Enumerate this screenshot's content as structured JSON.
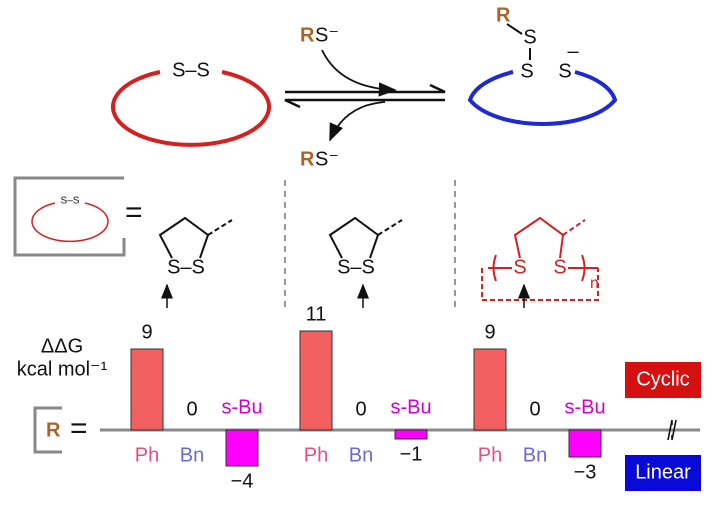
{
  "diagram": {
    "left_ring_label": "S–S",
    "reagent_in_r": "R",
    "reagent_in_s": "S⁻",
    "reagent_out_r": "R",
    "reagent_out_s": "S⁻",
    "right_ring_r": "R",
    "right_ring_s1": "S",
    "right_ring_s2": "S",
    "right_ring_s3": "S",
    "right_ring_charge": "–",
    "key_ring_label": "S–S",
    "key_equals": "=",
    "structure1_label": "S–S",
    "structure2_label": "S–S",
    "structure3_s1": "S",
    "structure3_s2": "S",
    "structure3_n": "n",
    "ddg_label": "ΔΔG",
    "ddg_unit": "kcal mol⁻¹",
    "r_label": "R",
    "r_equals": "=",
    "cyclic": "Cyclic",
    "linear": "Linear"
  },
  "chart_data": [
    {
      "type": "bar",
      "categories": [
        "Ph",
        "Bn",
        "s-Bu"
      ],
      "values": [
        9,
        0,
        -4
      ],
      "value_labels": [
        "9",
        "0",
        "−4"
      ],
      "colors": [
        "#f26060",
        "#8080ff",
        "#ff00ff"
      ],
      "category_colors": [
        "#e8507a",
        "#6a6ad8",
        "#d000d0"
      ],
      "ylim": [
        -5,
        12
      ]
    },
    {
      "type": "bar",
      "categories": [
        "Ph",
        "Bn",
        "s-Bu"
      ],
      "values": [
        11,
        0,
        -1
      ],
      "value_labels": [
        "11",
        "0",
        "−1"
      ],
      "colors": [
        "#f26060",
        "#8080ff",
        "#ff00ff"
      ],
      "category_colors": [
        "#e8507a",
        "#6a6ad8",
        "#d000d0"
      ],
      "ylim": [
        -5,
        12
      ]
    },
    {
      "type": "bar",
      "categories": [
        "Ph",
        "Bn",
        "s-Bu"
      ],
      "values": [
        9,
        0,
        -3
      ],
      "value_labels": [
        "9",
        "0",
        "−3"
      ],
      "colors": [
        "#f26060",
        "#8080ff",
        "#ff00ff"
      ],
      "category_colors": [
        "#e8507a",
        "#6a6ad8",
        "#d000d0"
      ],
      "ylim": [
        -5,
        12
      ]
    }
  ]
}
